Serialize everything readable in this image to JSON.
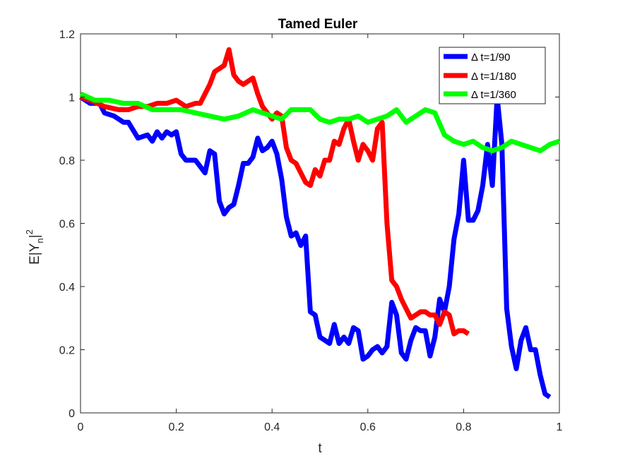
{
  "chart_data": {
    "type": "line",
    "title": "Tamed Euler",
    "xlabel": "t",
    "ylabel_main": "E|Y",
    "ylabel_sub": "n",
    "ylabel_end": "|",
    "ylabel_sup": "2",
    "xlim": [
      0,
      1
    ],
    "ylim": [
      0,
      1.2
    ],
    "xticks": [
      0,
      0.2,
      0.4,
      0.6,
      0.8,
      1
    ],
    "xtick_labels": [
      "0",
      "0.2",
      "0.4",
      "0.6",
      "0.8",
      "1"
    ],
    "yticks": [
      0,
      0.2,
      0.4,
      0.6,
      0.8,
      1,
      1.2
    ],
    "ytick_labels": [
      "0",
      "0.2",
      "0.4",
      "0.6",
      "0.8",
      "1",
      "1.2"
    ],
    "grid": false,
    "legend_position": "top-right",
    "series": [
      {
        "name": "Δ t=1/90",
        "color": "#0000ff",
        "points": [
          [
            0,
            1.0
          ],
          [
            0.02,
            0.98
          ],
          [
            0.04,
            0.98
          ],
          [
            0.05,
            0.95
          ],
          [
            0.07,
            0.94
          ],
          [
            0.09,
            0.92
          ],
          [
            0.1,
            0.92
          ],
          [
            0.12,
            0.87
          ],
          [
            0.14,
            0.88
          ],
          [
            0.15,
            0.86
          ],
          [
            0.16,
            0.89
          ],
          [
            0.17,
            0.87
          ],
          [
            0.18,
            0.89
          ],
          [
            0.19,
            0.88
          ],
          [
            0.2,
            0.89
          ],
          [
            0.21,
            0.82
          ],
          [
            0.22,
            0.8
          ],
          [
            0.24,
            0.8
          ],
          [
            0.25,
            0.78
          ],
          [
            0.26,
            0.76
          ],
          [
            0.27,
            0.83
          ],
          [
            0.28,
            0.82
          ],
          [
            0.29,
            0.67
          ],
          [
            0.3,
            0.63
          ],
          [
            0.31,
            0.65
          ],
          [
            0.32,
            0.66
          ],
          [
            0.33,
            0.72
          ],
          [
            0.34,
            0.79
          ],
          [
            0.35,
            0.79
          ],
          [
            0.36,
            0.81
          ],
          [
            0.37,
            0.87
          ],
          [
            0.38,
            0.83
          ],
          [
            0.39,
            0.84
          ],
          [
            0.4,
            0.86
          ],
          [
            0.41,
            0.82
          ],
          [
            0.42,
            0.74
          ],
          [
            0.43,
            0.62
          ],
          [
            0.44,
            0.56
          ],
          [
            0.45,
            0.57
          ],
          [
            0.46,
            0.53
          ],
          [
            0.47,
            0.56
          ],
          [
            0.48,
            0.32
          ],
          [
            0.49,
            0.31
          ],
          [
            0.5,
            0.24
          ],
          [
            0.51,
            0.23
          ],
          [
            0.52,
            0.22
          ],
          [
            0.53,
            0.28
          ],
          [
            0.54,
            0.22
          ],
          [
            0.55,
            0.24
          ],
          [
            0.56,
            0.22
          ],
          [
            0.57,
            0.27
          ],
          [
            0.58,
            0.26
          ],
          [
            0.59,
            0.17
          ],
          [
            0.6,
            0.18
          ],
          [
            0.61,
            0.2
          ],
          [
            0.62,
            0.21
          ],
          [
            0.63,
            0.19
          ],
          [
            0.64,
            0.21
          ],
          [
            0.65,
            0.35
          ],
          [
            0.66,
            0.31
          ],
          [
            0.67,
            0.19
          ],
          [
            0.68,
            0.17
          ],
          [
            0.69,
            0.23
          ],
          [
            0.7,
            0.27
          ],
          [
            0.71,
            0.26
          ],
          [
            0.72,
            0.26
          ],
          [
            0.73,
            0.18
          ],
          [
            0.74,
            0.24
          ],
          [
            0.75,
            0.36
          ],
          [
            0.76,
            0.32
          ],
          [
            0.77,
            0.4
          ],
          [
            0.78,
            0.55
          ],
          [
            0.79,
            0.63
          ],
          [
            0.8,
            0.8
          ],
          [
            0.81,
            0.61
          ],
          [
            0.82,
            0.61
          ],
          [
            0.83,
            0.64
          ],
          [
            0.84,
            0.72
          ],
          [
            0.85,
            0.85
          ],
          [
            0.86,
            0.72
          ],
          [
            0.87,
            1.0
          ],
          [
            0.88,
            0.85
          ],
          [
            0.89,
            0.33
          ],
          [
            0.9,
            0.21
          ],
          [
            0.91,
            0.14
          ],
          [
            0.92,
            0.23
          ],
          [
            0.93,
            0.27
          ],
          [
            0.94,
            0.2
          ],
          [
            0.95,
            0.2
          ],
          [
            0.96,
            0.12
          ],
          [
            0.97,
            0.06
          ],
          [
            0.98,
            0.05
          ]
        ]
      },
      {
        "name": "Δ t=1/180",
        "color": "#ff0000",
        "points": [
          [
            0,
            1.0
          ],
          [
            0.02,
            0.99
          ],
          [
            0.05,
            0.97
          ],
          [
            0.08,
            0.96
          ],
          [
            0.1,
            0.96
          ],
          [
            0.12,
            0.97
          ],
          [
            0.14,
            0.97
          ],
          [
            0.16,
            0.98
          ],
          [
            0.18,
            0.98
          ],
          [
            0.2,
            0.99
          ],
          [
            0.22,
            0.97
          ],
          [
            0.24,
            0.98
          ],
          [
            0.25,
            0.98
          ],
          [
            0.26,
            1.01
          ],
          [
            0.27,
            1.04
          ],
          [
            0.28,
            1.08
          ],
          [
            0.29,
            1.09
          ],
          [
            0.3,
            1.1
          ],
          [
            0.31,
            1.15
          ],
          [
            0.32,
            1.07
          ],
          [
            0.33,
            1.05
          ],
          [
            0.34,
            1.04
          ],
          [
            0.35,
            1.05
          ],
          [
            0.36,
            1.06
          ],
          [
            0.37,
            1.01
          ],
          [
            0.38,
            0.97
          ],
          [
            0.39,
            0.95
          ],
          [
            0.4,
            0.93
          ],
          [
            0.41,
            0.95
          ],
          [
            0.42,
            0.94
          ],
          [
            0.43,
            0.84
          ],
          [
            0.44,
            0.8
          ],
          [
            0.45,
            0.79
          ],
          [
            0.46,
            0.76
          ],
          [
            0.47,
            0.73
          ],
          [
            0.48,
            0.72
          ],
          [
            0.49,
            0.77
          ],
          [
            0.5,
            0.75
          ],
          [
            0.51,
            0.8
          ],
          [
            0.52,
            0.8
          ],
          [
            0.53,
            0.86
          ],
          [
            0.54,
            0.85
          ],
          [
            0.55,
            0.9
          ],
          [
            0.56,
            0.93
          ],
          [
            0.57,
            0.86
          ],
          [
            0.58,
            0.8
          ],
          [
            0.59,
            0.85
          ],
          [
            0.6,
            0.83
          ],
          [
            0.61,
            0.8
          ],
          [
            0.62,
            0.9
          ],
          [
            0.63,
            0.92
          ],
          [
            0.64,
            0.6
          ],
          [
            0.65,
            0.42
          ],
          [
            0.66,
            0.4
          ],
          [
            0.67,
            0.36
          ],
          [
            0.68,
            0.33
          ],
          [
            0.69,
            0.3
          ],
          [
            0.7,
            0.31
          ],
          [
            0.71,
            0.32
          ],
          [
            0.72,
            0.32
          ],
          [
            0.73,
            0.31
          ],
          [
            0.74,
            0.31
          ],
          [
            0.75,
            0.28
          ],
          [
            0.76,
            0.32
          ],
          [
            0.77,
            0.31
          ],
          [
            0.78,
            0.25
          ],
          [
            0.79,
            0.26
          ],
          [
            0.8,
            0.26
          ],
          [
            0.81,
            0.25
          ]
        ]
      },
      {
        "name": "Δ t=1/360",
        "color": "#00ff00",
        "points": [
          [
            0,
            1.01
          ],
          [
            0.03,
            0.99
          ],
          [
            0.06,
            0.99
          ],
          [
            0.09,
            0.98
          ],
          [
            0.12,
            0.98
          ],
          [
            0.15,
            0.96
          ],
          [
            0.18,
            0.96
          ],
          [
            0.21,
            0.96
          ],
          [
            0.24,
            0.95
          ],
          [
            0.27,
            0.94
          ],
          [
            0.3,
            0.93
          ],
          [
            0.33,
            0.94
          ],
          [
            0.36,
            0.96
          ],
          [
            0.38,
            0.95
          ],
          [
            0.4,
            0.94
          ],
          [
            0.42,
            0.93
          ],
          [
            0.44,
            0.96
          ],
          [
            0.46,
            0.96
          ],
          [
            0.48,
            0.96
          ],
          [
            0.5,
            0.93
          ],
          [
            0.52,
            0.92
          ],
          [
            0.54,
            0.93
          ],
          [
            0.56,
            0.93
          ],
          [
            0.58,
            0.94
          ],
          [
            0.6,
            0.92
          ],
          [
            0.62,
            0.93
          ],
          [
            0.64,
            0.94
          ],
          [
            0.66,
            0.96
          ],
          [
            0.68,
            0.92
          ],
          [
            0.7,
            0.94
          ],
          [
            0.72,
            0.96
          ],
          [
            0.74,
            0.95
          ],
          [
            0.76,
            0.88
          ],
          [
            0.78,
            0.86
          ],
          [
            0.8,
            0.85
          ],
          [
            0.82,
            0.86
          ],
          [
            0.84,
            0.84
          ],
          [
            0.86,
            0.83
          ],
          [
            0.88,
            0.84
          ],
          [
            0.9,
            0.86
          ],
          [
            0.92,
            0.85
          ],
          [
            0.94,
            0.84
          ],
          [
            0.96,
            0.83
          ],
          [
            0.98,
            0.85
          ],
          [
            1.0,
            0.86
          ]
        ]
      }
    ]
  }
}
